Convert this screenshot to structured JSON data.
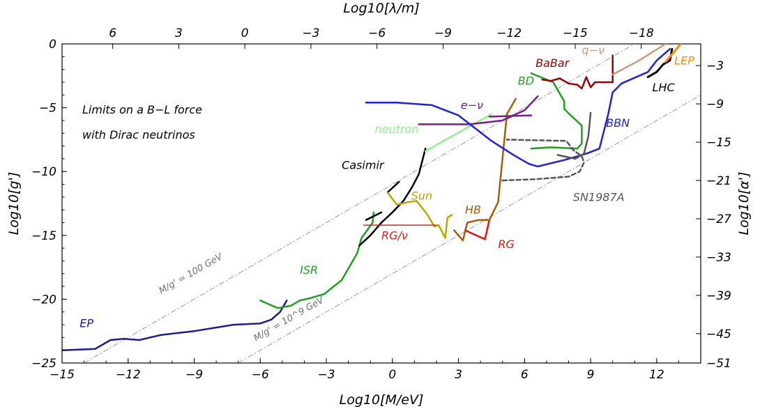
{
  "chart_data": {
    "type": "line",
    "title": "",
    "annotation_lines": [
      "Limits on a B−L force",
      "with Dirac neutrinos"
    ],
    "xlabel": "Log10[M/eV]",
    "ylabel": "Log10[g']",
    "top_label": "Log10[λ/m]",
    "right_label": "Log10[α']",
    "xlim": [
      -15,
      14
    ],
    "ylim": [
      -25,
      0
    ],
    "x_ticks": [
      -15,
      -12,
      -9,
      -6,
      -3,
      0,
      3,
      6,
      9,
      12
    ],
    "x_tick_labels": [
      "−15",
      "−12",
      "−9",
      "−6",
      "−3",
      "0",
      "3",
      "6",
      "9",
      "12"
    ],
    "y_ticks": [
      -25,
      -20,
      -15,
      -10,
      -5,
      0
    ],
    "y_tick_labels": [
      "−25",
      "−20",
      "−15",
      "−10",
      "−5",
      "0"
    ],
    "top_ticks_at_x": [
      -12.7,
      -9.7,
      -6.7,
      -3.7,
      -0.7,
      2.3,
      5.3,
      8.3,
      11.3,
      14.3
    ],
    "top_tick_labels": [
      "6",
      "3",
      "0",
      "−3",
      "−6",
      "−9",
      "−12",
      "−15",
      "−18"
    ],
    "right_ticks_at_y": [
      -1.7,
      -4.7,
      -7.7,
      -10.7,
      -13.7,
      -16.7,
      -19.7,
      -22.7,
      -25.7
    ],
    "right_tick_labels": [
      "−3",
      "−9",
      "−15",
      "−21",
      "−27",
      "−33",
      "−39",
      "−45",
      "−51"
    ],
    "guide_lines": [
      {
        "label": "M/g' = 100 GeV",
        "points": [
          [
            -14,
            -25
          ],
          [
            11,
            0
          ]
        ],
        "color": "#999999"
      },
      {
        "label": "M/g' = 10^9 GeV",
        "points": [
          [
            -7,
            -25
          ],
          [
            14,
            -4
          ]
        ],
        "color": "#999999"
      }
    ],
    "series": [
      {
        "name": "EP",
        "color": "#1a1aa0",
        "width": 2.5,
        "points": [
          [
            -15,
            -24
          ],
          [
            -13.5,
            -23.9
          ],
          [
            -12.8,
            -23.2
          ],
          [
            -12.2,
            -23.1
          ],
          [
            -11.5,
            -23.2
          ],
          [
            -10.5,
            -22.8
          ],
          [
            -9,
            -22.5
          ],
          [
            -7.2,
            -22
          ],
          [
            -6,
            -21.9
          ],
          [
            -5.5,
            -21.6
          ],
          [
            -5.1,
            -21
          ],
          [
            -4.8,
            -20.1
          ]
        ]
      },
      {
        "name": "ISR",
        "color": "#1ea01e",
        "width": 2.5,
        "points": [
          [
            -6,
            -20.1
          ],
          [
            -5.2,
            -20.7
          ],
          [
            -4.6,
            -20.5
          ],
          [
            -4.2,
            -20.1
          ],
          [
            -3.7,
            -19.9
          ],
          [
            -3.1,
            -19.6
          ],
          [
            -2.3,
            -18.5
          ],
          [
            -1.6,
            -16.4
          ],
          [
            -1.4,
            -15.2
          ],
          [
            -0.9,
            -14
          ],
          [
            -0.85,
            -13.2
          ]
        ]
      },
      {
        "name": "Casimir",
        "color": "#000000",
        "width": 2.5,
        "points": [
          [
            -1.5,
            -15.8
          ],
          [
            -1,
            -15
          ],
          [
            -0.5,
            -14
          ],
          [
            0,
            -13.2
          ],
          [
            0.5,
            -12.3
          ],
          [
            0.9,
            -11.2
          ],
          [
            1.2,
            -10.2
          ],
          [
            1.5,
            -8.2
          ]
        ]
      },
      {
        "name": "Casimir-b",
        "color": "#000000",
        "width": 2.5,
        "points": [
          [
            -1.2,
            -13.8
          ],
          [
            -0.5,
            -13.2
          ]
        ]
      },
      {
        "name": "Casimir-c",
        "color": "#000000",
        "width": 2.5,
        "points": [
          [
            -0.2,
            -11.6
          ],
          [
            0.3,
            -10.8
          ]
        ]
      },
      {
        "name": "Sun",
        "color": "#b8a800",
        "width": 2.5,
        "points": [
          [
            -0.2,
            -11.7
          ],
          [
            0.2,
            -12.6
          ],
          [
            0.7,
            -12.4
          ],
          [
            1.1,
            -12.3
          ],
          [
            1.6,
            -13.4
          ],
          [
            1.9,
            -14.3
          ],
          [
            2.1,
            -14.2
          ],
          [
            2.4,
            -15.2
          ],
          [
            2.5,
            -13.6
          ],
          [
            2.7,
            -13.4
          ]
        ]
      },
      {
        "name": "RG/ν",
        "color": "#e02020",
        "width": 1.5,
        "points": [
          [
            -1.3,
            -14.2
          ],
          [
            2.0,
            -14.2
          ]
        ]
      },
      {
        "name": "RG",
        "color": "#ee1111",
        "width": 2.5,
        "points": [
          [
            3.3,
            -14.6
          ],
          [
            4.2,
            -15.3
          ],
          [
            4.4,
            -13.8
          ]
        ]
      },
      {
        "name": "HB",
        "color": "#a85c08",
        "width": 2.5,
        "points": [
          [
            2.8,
            -14.6
          ],
          [
            3.2,
            -15.4
          ],
          [
            3.4,
            -14.0
          ],
          [
            3.9,
            -13.8
          ],
          [
            4.4,
            -13.8
          ],
          [
            4.8,
            -12.4
          ],
          [
            5.2,
            -5.5
          ],
          [
            5.6,
            -4.3
          ]
        ]
      },
      {
        "name": "neutron",
        "color": "#8ef08e",
        "width": 2.5,
        "points": [
          [
            1.5,
            -8.4
          ],
          [
            4.5,
            -5.5
          ]
        ]
      },
      {
        "name": "e−ν",
        "color": "#7a1a90",
        "width": 2.5,
        "points": [
          [
            1.2,
            -6.3
          ],
          [
            3.5,
            -6.3
          ],
          [
            5.0,
            -6.0
          ],
          [
            6.0,
            -5.2
          ],
          [
            6.6,
            -4.1
          ]
        ]
      },
      {
        "name": "e−ν-b",
        "color": "#7a1a90",
        "width": 2.5,
        "points": [
          [
            4.4,
            -5.7
          ],
          [
            6.3,
            -5.6
          ]
        ]
      },
      {
        "name": "BD",
        "color": "#1ea01e",
        "width": 2.5,
        "points": [
          [
            6.3,
            -2.3
          ],
          [
            7.3,
            -3.0
          ],
          [
            7.8,
            -4.5
          ],
          [
            7.8,
            -5.1
          ],
          [
            8.1,
            -5.6
          ],
          [
            8.6,
            -6.4
          ],
          [
            8.6,
            -7.8
          ],
          [
            8.4,
            -8.2
          ],
          [
            7.2,
            -8.1
          ],
          [
            6.3,
            -8.2
          ]
        ]
      },
      {
        "name": "BaBar",
        "color": "#a00000",
        "width": 2.5,
        "points": [
          [
            6.8,
            -2.8
          ],
          [
            7.2,
            -2.9
          ],
          [
            7.6,
            -2.7
          ],
          [
            8.0,
            -3.1
          ],
          [
            8.4,
            -3.2
          ],
          [
            8.6,
            -3.5
          ],
          [
            8.8,
            -2.6
          ],
          [
            9.0,
            -3.4
          ],
          [
            9.2,
            -3.0
          ],
          [
            9.6,
            -3.0
          ],
          [
            10.0,
            -3.0
          ],
          [
            10.0,
            -0.9
          ]
        ]
      },
      {
        "name": "q−ν",
        "color": "#c89a78",
        "width": 2.5,
        "points": [
          [
            10.0,
            -2.4
          ],
          [
            11.2,
            -1.3
          ],
          [
            12.4,
            0
          ]
        ]
      },
      {
        "name": "BBN",
        "color": "#2020e0",
        "width": 2.5,
        "points": [
          [
            -1.2,
            -4.6
          ],
          [
            0.2,
            -4.6
          ],
          [
            1.8,
            -4.8
          ],
          [
            3.0,
            -5.6
          ],
          [
            4.5,
            -7.6
          ],
          [
            5.5,
            -8.7
          ],
          [
            6.2,
            -9.4
          ],
          [
            6.6,
            -9.6
          ],
          [
            7.8,
            -9.1
          ],
          [
            8.8,
            -8.6
          ],
          [
            9.4,
            -8.2
          ],
          [
            9.8,
            -5.5
          ],
          [
            10.0,
            -3.8
          ],
          [
            10.4,
            -3.1
          ],
          [
            11.6,
            -2.2
          ],
          [
            12.0,
            -1.3
          ],
          [
            12.6,
            -0.4
          ]
        ]
      },
      {
        "name": "LHC",
        "color": "#000000",
        "width": 3,
        "points": [
          [
            11.6,
            -2.6
          ],
          [
            12.0,
            -2.2
          ],
          [
            12.3,
            -1.6
          ],
          [
            12.6,
            -1.3
          ],
          [
            12.7,
            -0.4
          ]
        ]
      },
      {
        "name": "LEP",
        "color": "#ff8c00",
        "width": 3,
        "points": [
          [
            12.4,
            -1.4
          ],
          [
            12.8,
            -0.6
          ],
          [
            13.1,
            0
          ]
        ]
      },
      {
        "name": "SN1987A",
        "color": "#555555",
        "width": 2.5,
        "dash": "6,4",
        "points": [
          [
            5.0,
            -10.7
          ],
          [
            6.5,
            -10.6
          ],
          [
            8.0,
            -10.4
          ],
          [
            8.5,
            -10.0
          ],
          [
            8.7,
            -9.3
          ],
          [
            8.6,
            -8.8
          ],
          [
            8.2,
            -8.3
          ],
          [
            7.9,
            -7.6
          ],
          [
            5.2,
            -7.5
          ]
        ]
      },
      {
        "name": "SN1987A-b",
        "color": "#555555",
        "width": 2.5,
        "points": [
          [
            7.5,
            -8.7
          ],
          [
            8.3,
            -9.0
          ],
          [
            8.7,
            -8.6
          ],
          [
            8.9,
            -7.2
          ],
          [
            9.0,
            -5.4
          ]
        ]
      }
    ],
    "series_labels": [
      {
        "text": "EP",
        "color": "#1a1aa0",
        "at": [
          -14.2,
          -22.2
        ]
      },
      {
        "text": "ISR",
        "color": "#1ea01e",
        "at": [
          -4.2,
          -18.0
        ]
      },
      {
        "text": "Casimir",
        "color": "#000000",
        "at": [
          -2.3,
          -9.8
        ]
      },
      {
        "text": "Sun",
        "color": "#b8a800",
        "at": [
          0.85,
          -12.2
        ]
      },
      {
        "text": "RG/ν",
        "color": "#e02020",
        "at": [
          -0.5,
          -15.3
        ]
      },
      {
        "text": "RG",
        "color": "#ee1111",
        "at": [
          4.8,
          -16.0
        ]
      },
      {
        "text": "HB",
        "color": "#a85c08",
        "at": [
          3.3,
          -13.3
        ]
      },
      {
        "text": "neutron",
        "color": "#8ef08e",
        "at": [
          -0.8,
          -7.0
        ]
      },
      {
        "text": "e−ν",
        "color": "#7a1a90",
        "at": [
          3.1,
          -5.1
        ]
      },
      {
        "text": "BD",
        "color": "#1ea01e",
        "at": [
          5.7,
          -3.2
        ]
      },
      {
        "text": "BaBar",
        "color": "#a00000",
        "at": [
          6.5,
          -1.8
        ]
      },
      {
        "text": "q−ν",
        "color": "#c89a78",
        "at": [
          8.6,
          -0.8
        ]
      },
      {
        "text": "BBN",
        "color": "#2020e0",
        "at": [
          9.7,
          -6.5
        ]
      },
      {
        "text": "LHC",
        "color": "#000000",
        "at": [
          11.8,
          -3.7
        ]
      },
      {
        "text": "LEP",
        "color": "#ff8c00",
        "at": [
          12.8,
          -1.6
        ]
      },
      {
        "text": "SN1987A",
        "color": "#555555",
        "at": [
          8.2,
          -12.3
        ]
      }
    ]
  }
}
